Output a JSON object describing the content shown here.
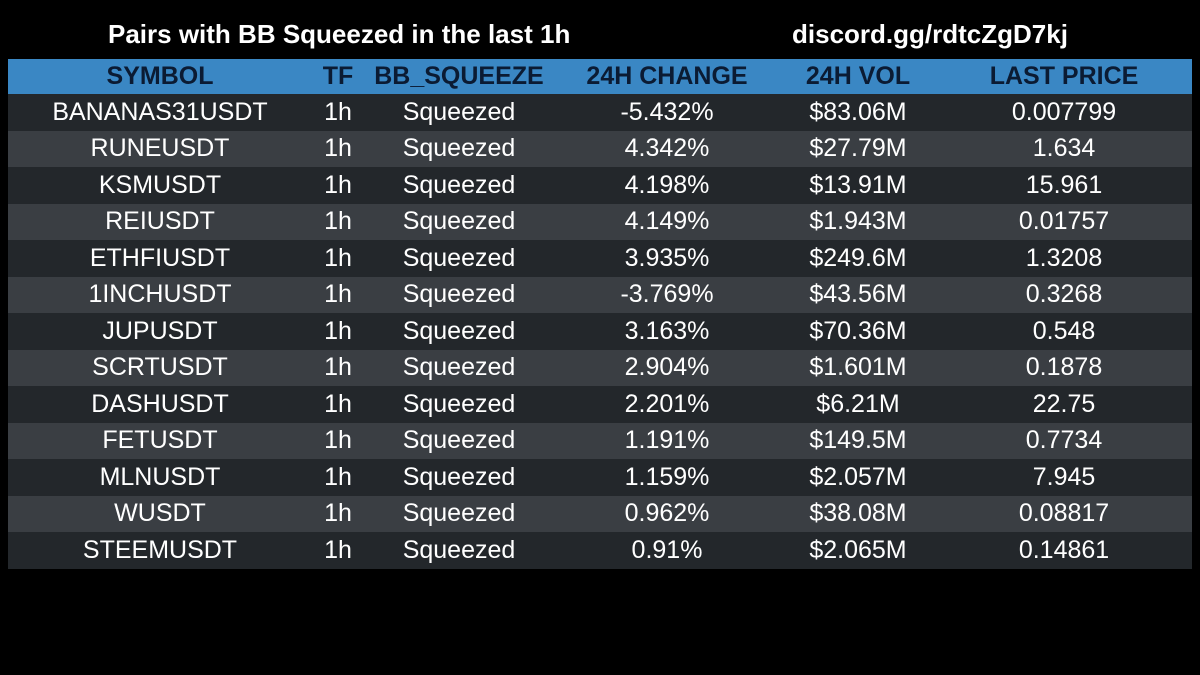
{
  "header": {
    "title": "Pairs with BB Squeezed in the last 1h",
    "discord": "discord.gg/rdtcZgD7kj"
  },
  "colors": {
    "header_bg": "#3a87c4",
    "header_text": "#0b1b33",
    "row_dark": "#23272b",
    "row_light": "#3a3e43",
    "page_bg": "#000000"
  },
  "table": {
    "columns": [
      "SYMBOL",
      "TF",
      "BB_SQUEEZE",
      "24H CHANGE",
      "24H VOL",
      "LAST PRICE"
    ],
    "rows": [
      [
        "BANANAS31USDT",
        "1h",
        "Squeezed",
        "-5.432%",
        "$83.06M",
        "0.007799"
      ],
      [
        "RUNEUSDT",
        "1h",
        "Squeezed",
        "4.342%",
        "$27.79M",
        "1.634"
      ],
      [
        "KSMUSDT",
        "1h",
        "Squeezed",
        "4.198%",
        "$13.91M",
        "15.961"
      ],
      [
        "REIUSDT",
        "1h",
        "Squeezed",
        "4.149%",
        "$1.943M",
        "0.01757"
      ],
      [
        "ETHFIUSDT",
        "1h",
        "Squeezed",
        "3.935%",
        "$249.6M",
        "1.3208"
      ],
      [
        "1INCHUSDT",
        "1h",
        "Squeezed",
        "-3.769%",
        "$43.56M",
        "0.3268"
      ],
      [
        "JUPUSDT",
        "1h",
        "Squeezed",
        "3.163%",
        "$70.36M",
        "0.548"
      ],
      [
        "SCRTUSDT",
        "1h",
        "Squeezed",
        "2.904%",
        "$1.601M",
        "0.1878"
      ],
      [
        "DASHUSDT",
        "1h",
        "Squeezed",
        "2.201%",
        "$6.21M",
        "22.75"
      ],
      [
        "FETUSDT",
        "1h",
        "Squeezed",
        "1.191%",
        "$149.5M",
        "0.7734"
      ],
      [
        "MLNUSDT",
        "1h",
        "Squeezed",
        "1.159%",
        "$2.057M",
        "7.945"
      ],
      [
        "WUSDT",
        "1h",
        "Squeezed",
        "0.962%",
        "$38.08M",
        "0.08817"
      ],
      [
        "STEEMUSDT",
        "1h",
        "Squeezed",
        "0.91%",
        "$2.065M",
        "0.14861"
      ]
    ]
  }
}
